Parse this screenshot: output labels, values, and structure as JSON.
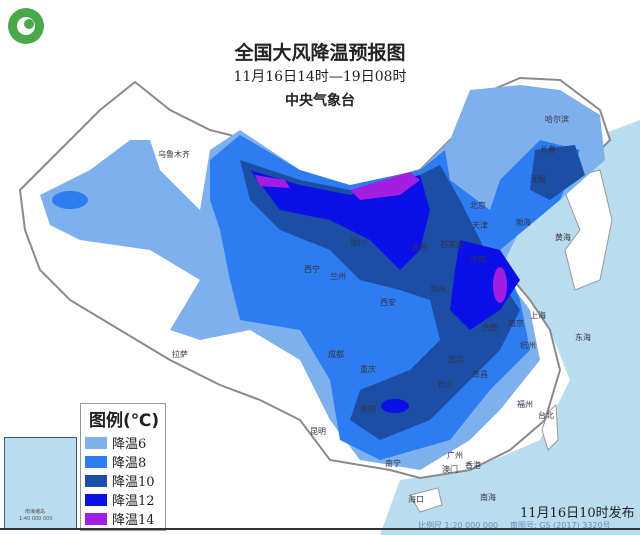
{
  "header": {
    "title": "全国大风降温预报图",
    "period": "11月16日14时—19日08时",
    "issuer": "中央气象台"
  },
  "legend": {
    "title": "图例(℃)",
    "items": [
      {
        "label": "降温6",
        "color": "#7fb0ee"
      },
      {
        "label": "降温8",
        "color": "#2e7cf2"
      },
      {
        "label": "降温10",
        "color": "#1c4ea6"
      },
      {
        "label": "降温12",
        "color": "#0a10e6"
      },
      {
        "label": "降温14",
        "color": "#a21ee0"
      }
    ]
  },
  "cities": [
    "乌鲁木齐",
    "拉萨",
    "西宁",
    "兰州",
    "银川",
    "西安",
    "成都",
    "重庆",
    "贵阳",
    "昆明",
    "南宁",
    "广州",
    "香港",
    "澳门",
    "海口",
    "长沙",
    "武汉",
    "南昌",
    "合肥",
    "南京",
    "上海",
    "杭州",
    "福州",
    "台北",
    "郑州",
    "济南",
    "石家庄",
    "太原",
    "北京",
    "天津",
    "沈阳",
    "长春",
    "哈尔滨"
  ],
  "seas": [
    "渤海",
    "黄海",
    "东海",
    "南海"
  ],
  "inset": {
    "label": "南海诸岛",
    "scale": "1:40 000 000"
  },
  "footer": {
    "issued": "11月16日10时发布",
    "scale": "比例尺 1:20 000 000",
    "approval": "审图号: GS (2017) 3320号"
  },
  "colors": {
    "sea": "#b9dcef",
    "land": "#ffffff",
    "border": "#8a8a8a"
  }
}
